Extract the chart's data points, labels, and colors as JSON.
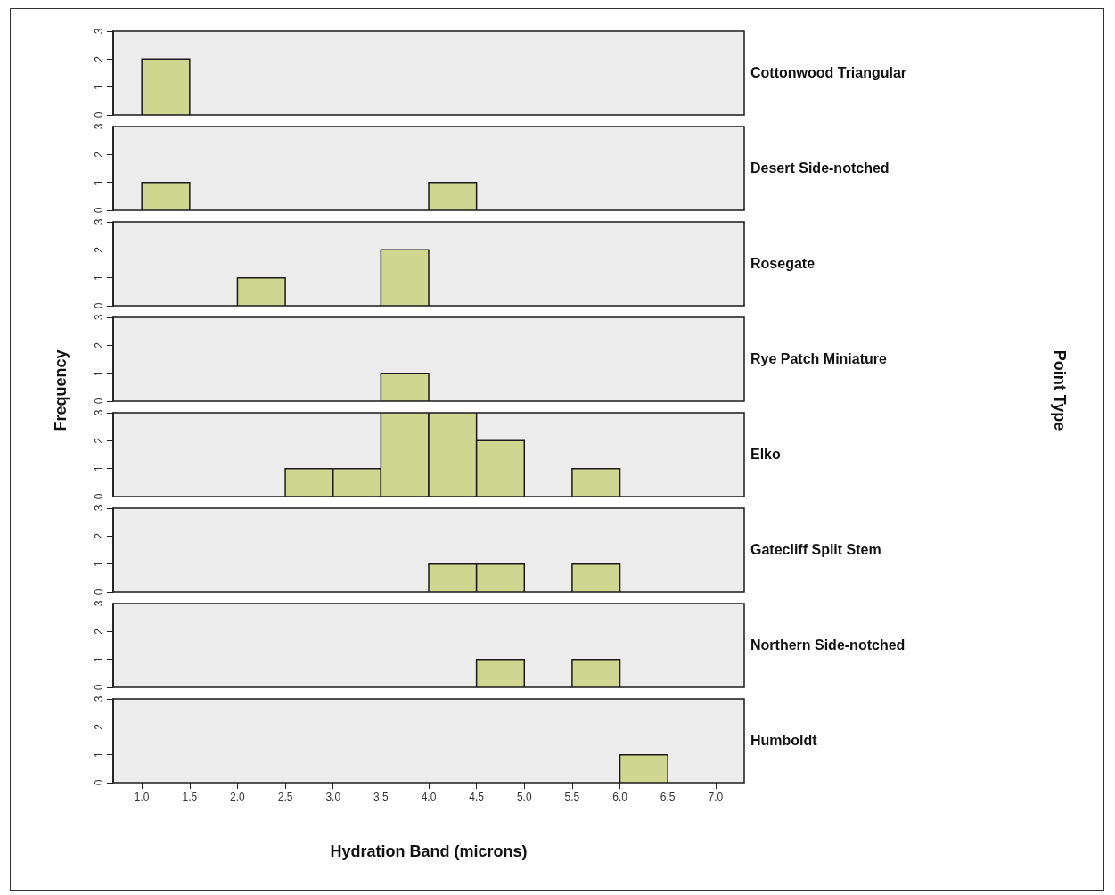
{
  "chart_data": [
    {
      "type": "histogram",
      "title": "Cottonwood Triangular",
      "bins": [
        1,
        1.5,
        2,
        2.5,
        3,
        3.5,
        4,
        4.5,
        5,
        5.5,
        6,
        6.5,
        7
      ],
      "values": [
        2,
        0,
        0,
        0,
        0,
        0,
        0,
        0,
        0,
        0,
        0,
        0
      ],
      "color": "#cfd68f",
      "xlim": [
        0.7,
        7.3
      ],
      "ylim": [
        0,
        3
      ],
      "yticks": [
        0,
        1,
        2,
        3
      ],
      "tick_labels": "y"
    },
    {
      "type": "histogram",
      "title": "Desert Side-notched",
      "bins": [
        1,
        1.5,
        2,
        2.5,
        3,
        3.5,
        4,
        4.5,
        5,
        5.5,
        6,
        6.5,
        7
      ],
      "values": [
        1,
        0,
        0,
        0,
        0,
        0,
        1,
        0,
        0,
        0,
        0,
        0
      ],
      "color": "#cfd68f",
      "xlim": [
        0.7,
        7.3
      ],
      "ylim": [
        0,
        3
      ],
      "yticks": [
        0,
        1,
        2,
        3
      ],
      "tick_labels": "y"
    },
    {
      "type": "histogram",
      "title": "Rosegate",
      "bins": [
        1,
        1.5,
        2,
        2.5,
        3,
        3.5,
        4,
        4.5,
        5,
        5.5,
        6,
        6.5,
        7
      ],
      "values": [
        0,
        0,
        1,
        0,
        0,
        2,
        0,
        0,
        0,
        0,
        0,
        0
      ],
      "color": "#cfd68f",
      "xlim": [
        0.7,
        7.3
      ],
      "ylim": [
        0,
        3
      ],
      "yticks": [
        0,
        1,
        2,
        3
      ],
      "tick_labels": "y"
    },
    {
      "type": "histogram",
      "title": "Rye Patch Miniature",
      "ylabel": "Frequency",
      "annotations": [
        "Point Type"
      ],
      "bins": [
        1,
        1.5,
        2,
        2.5,
        3,
        3.5,
        4,
        4.5,
        5,
        5.5,
        6,
        6.5,
        7
      ],
      "values": [
        0,
        0,
        0,
        0,
        0,
        1,
        0,
        0,
        0,
        0,
        0,
        0
      ],
      "color": "#cfd68f",
      "xlim": [
        0.7,
        7.3
      ],
      "ylim": [
        0,
        3
      ],
      "yticks": [
        0,
        1,
        2,
        3
      ],
      "tick_labels": "y"
    },
    {
      "type": "histogram",
      "title": "Elko",
      "bins": [
        1,
        1.5,
        2,
        2.5,
        3,
        3.5,
        4,
        4.5,
        5,
        5.5,
        6,
        6.5,
        7
      ],
      "values": [
        0,
        0,
        0,
        1,
        1,
        3,
        3,
        2,
        0,
        1,
        0,
        0
      ],
      "color": "#cfd68f",
      "xlim": [
        0.7,
        7.3
      ],
      "ylim": [
        0,
        3
      ],
      "yticks": [
        0,
        1,
        2,
        3
      ],
      "tick_labels": "y"
    },
    {
      "type": "histogram",
      "title": "Gatecliff Split Stem",
      "bins": [
        1,
        1.5,
        2,
        2.5,
        3,
        3.5,
        4,
        4.5,
        5,
        5.5,
        6,
        6.5,
        7
      ],
      "values": [
        0,
        0,
        0,
        0,
        0,
        0,
        1,
        1,
        0,
        1,
        0,
        0
      ],
      "color": "#cfd68f",
      "xlim": [
        0.7,
        7.3
      ],
      "ylim": [
        0,
        3
      ],
      "yticks": [
        0,
        1,
        2,
        3
      ],
      "tick_labels": "y"
    },
    {
      "type": "histogram",
      "title": "Northern Side-notched",
      "bins": [
        1,
        1.5,
        2,
        2.5,
        3,
        3.5,
        4,
        4.5,
        5,
        5.5,
        6,
        6.5,
        7
      ],
      "values": [
        0,
        0,
        0,
        0,
        0,
        0,
        0,
        1,
        0,
        1,
        0,
        0
      ],
      "color": "#cfd68f",
      "xlim": [
        0.7,
        7.3
      ],
      "ylim": [
        0,
        3
      ],
      "yticks": [
        0,
        1,
        2,
        3
      ],
      "tick_labels": "y"
    },
    {
      "type": "histogram",
      "title": "Humboldt",
      "xlabel": "Hydration Band (microns)",
      "bins": [
        1,
        1.5,
        2,
        2.5,
        3,
        3.5,
        4,
        4.5,
        5,
        5.5,
        6,
        6.5,
        7
      ],
      "values": [
        0,
        0,
        0,
        0,
        0,
        0,
        0,
        0,
        0,
        0,
        1,
        0
      ],
      "color": "#cfd68f",
      "xlim": [
        0.7,
        7.3
      ],
      "ylim": [
        0,
        3
      ],
      "yticks": [
        0,
        1,
        2,
        3
      ],
      "xticks": [
        {
          "value": 1,
          "label": "1.0"
        },
        1.5,
        {
          "value": 2,
          "label": "2.0"
        },
        2.5,
        {
          "value": 3,
          "label": "3.0"
        },
        3.5,
        {
          "value": 4,
          "label": "4.0"
        },
        4.5,
        {
          "value": 5,
          "label": "5.0"
        },
        5.5,
        {
          "value": 6,
          "label": "6.0"
        },
        6.5,
        {
          "value": 7,
          "label": "7.0"
        }
      ]
    }
  ]
}
